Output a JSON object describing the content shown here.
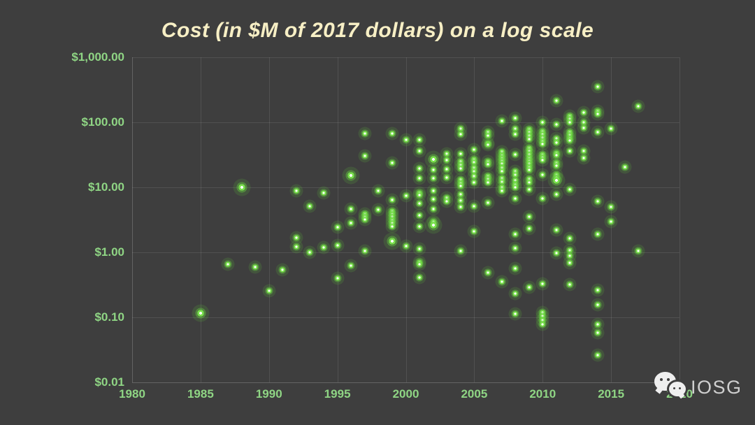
{
  "title": "Cost (in $M of 2017 dollars) on a log scale",
  "watermark": {
    "brand": "IOSG",
    "icon": "wechat-icon"
  },
  "colors": {
    "background": "#3E3E3E",
    "title_text": "#F7EFC5",
    "axis_label_text": "#8FD584",
    "dot_ring": "#79E04C",
    "dot_core": "#FFFFFF",
    "gridline": "#515151",
    "watermark_text": "#CFCFCF"
  },
  "chart_data": {
    "type": "scatter",
    "title": "Cost (in $M of 2017 dollars) on a log scale",
    "xlabel": "",
    "ylabel": "",
    "grid": true,
    "x_axis": {
      "range": [
        1980,
        2020
      ],
      "ticks": [
        1980,
        1985,
        1990,
        1995,
        2000,
        2005,
        2010,
        2015,
        2020
      ]
    },
    "y_axis": {
      "scale": "log",
      "range": [
        0.01,
        1000
      ],
      "tick_values": [
        1000,
        100,
        10,
        1,
        0.1,
        0.01
      ],
      "tick_labels": [
        "$1,000.00",
        "$100.00",
        "$10.00",
        "$1.00",
        "$0.10",
        "$0.01"
      ]
    },
    "points": [
      [
        1985,
        0.115,
        2
      ],
      [
        1987,
        0.65
      ],
      [
        1988,
        10,
        2
      ],
      [
        1989,
        0.59
      ],
      [
        1990,
        0.255
      ],
      [
        1991,
        0.54
      ],
      [
        1992,
        8.8
      ],
      [
        1992,
        1.7
      ],
      [
        1992,
        1.22
      ],
      [
        1993,
        5.1
      ],
      [
        1993,
        1.0
      ],
      [
        1994,
        8.2
      ],
      [
        1994,
        1.2
      ],
      [
        1995,
        2.45
      ],
      [
        1995,
        1.28
      ],
      [
        1995,
        0.4
      ],
      [
        1996,
        15.3,
        2
      ],
      [
        1996,
        4.6
      ],
      [
        1996,
        2.85
      ],
      [
        1996,
        0.62
      ],
      [
        1997,
        68
      ],
      [
        1997,
        30.5
      ],
      [
        1997,
        3.9
      ],
      [
        1997,
        3.5
      ],
      [
        1997,
        3.2
      ],
      [
        1997,
        1.05
      ],
      [
        1998,
        8.8
      ],
      [
        1998,
        4.5
      ],
      [
        1999,
        68
      ],
      [
        1999,
        23.5
      ],
      [
        1999,
        6.4
      ],
      [
        1999,
        4.3
      ],
      [
        1999,
        3.9
      ],
      [
        1999,
        3.5
      ],
      [
        1999,
        3.1
      ],
      [
        1999,
        2.8
      ],
      [
        1999,
        2.5
      ],
      [
        1999,
        1.5,
        2
      ],
      [
        2000,
        54
      ],
      [
        2000,
        7.4
      ],
      [
        2000,
        1.25
      ],
      [
        2001,
        54
      ],
      [
        2001,
        36
      ],
      [
        2001,
        19.7
      ],
      [
        2001,
        13.9
      ],
      [
        2001,
        8.3
      ],
      [
        2001,
        7.6
      ],
      [
        2001,
        5.6
      ],
      [
        2001,
        3.7
      ],
      [
        2001,
        2.5
      ],
      [
        2001,
        1.13
      ],
      [
        2001,
        0.71
      ],
      [
        2001,
        0.65
      ],
      [
        2001,
        0.41
      ],
      [
        2002,
        27,
        2
      ],
      [
        2002,
        18.8
      ],
      [
        2002,
        13.9
      ],
      [
        2002,
        8.8
      ],
      [
        2002,
        6.6
      ],
      [
        2002,
        4.6
      ],
      [
        2002,
        3.0
      ],
      [
        2002,
        2.65,
        2
      ],
      [
        2003,
        33
      ],
      [
        2003,
        26
      ],
      [
        2003,
        19
      ],
      [
        2003,
        14
      ],
      [
        2003,
        6.9
      ],
      [
        2003,
        6.1
      ],
      [
        2004,
        80
      ],
      [
        2004,
        65
      ],
      [
        2004,
        33
      ],
      [
        2004,
        25
      ],
      [
        2004,
        22
      ],
      [
        2004,
        19.5
      ],
      [
        2004,
        13
      ],
      [
        2004,
        11.5
      ],
      [
        2004,
        10.5
      ],
      [
        2004,
        7.9
      ],
      [
        2004,
        6.2
      ],
      [
        2004,
        5.0
      ],
      [
        2004,
        1.05
      ],
      [
        2005,
        38
      ],
      [
        2005,
        27
      ],
      [
        2005,
        24.5
      ],
      [
        2005,
        20
      ],
      [
        2005,
        17.5
      ],
      [
        2005,
        15
      ],
      [
        2005,
        12
      ],
      [
        2005,
        5.1
      ],
      [
        2005,
        2.1
      ],
      [
        2006,
        70
      ],
      [
        2006,
        62
      ],
      [
        2006,
        48
      ],
      [
        2006,
        45
      ],
      [
        2006,
        25
      ],
      [
        2006,
        22.5
      ],
      [
        2006,
        14.8
      ],
      [
        2006,
        13.3
      ],
      [
        2006,
        11.9
      ],
      [
        2006,
        5.8
      ],
      [
        2006,
        0.49
      ],
      [
        2007,
        106
      ],
      [
        2007,
        35
      ],
      [
        2007,
        31.5
      ],
      [
        2007,
        28
      ],
      [
        2007,
        25.5
      ],
      [
        2007,
        23
      ],
      [
        2007,
        20
      ],
      [
        2007,
        17.8
      ],
      [
        2007,
        13.8
      ],
      [
        2007,
        12.3
      ],
      [
        2007,
        9.9
      ],
      [
        2007,
        8.9
      ],
      [
        2007,
        0.355
      ],
      [
        2008,
        115
      ],
      [
        2008,
        80
      ],
      [
        2008,
        65
      ],
      [
        2008,
        32
      ],
      [
        2008,
        17.5
      ],
      [
        2008,
        15.6
      ],
      [
        2008,
        12.8
      ],
      [
        2008,
        11
      ],
      [
        2008,
        9.9
      ],
      [
        2008,
        6.7
      ],
      [
        2008,
        1.9
      ],
      [
        2008,
        1.16
      ],
      [
        2008,
        0.57
      ],
      [
        2008,
        0.23
      ],
      [
        2008,
        0.112
      ],
      [
        2009,
        79
      ],
      [
        2009,
        71
      ],
      [
        2009,
        63
      ],
      [
        2009,
        55
      ],
      [
        2009,
        40
      ],
      [
        2009,
        36
      ],
      [
        2009,
        32
      ],
      [
        2009,
        28.5
      ],
      [
        2009,
        25.5
      ],
      [
        2009,
        23
      ],
      [
        2009,
        20.5
      ],
      [
        2009,
        18.5
      ],
      [
        2009,
        13.5
      ],
      [
        2009,
        11.9
      ],
      [
        2009,
        9.3
      ],
      [
        2009,
        3.5
      ],
      [
        2009,
        2.3
      ],
      [
        2009,
        0.29
      ],
      [
        2010,
        100
      ],
      [
        2010,
        73
      ],
      [
        2010,
        65
      ],
      [
        2010,
        58
      ],
      [
        2010,
        51
      ],
      [
        2010,
        46
      ],
      [
        2010,
        32
      ],
      [
        2010,
        29
      ],
      [
        2010,
        26
      ],
      [
        2010,
        15.5
      ],
      [
        2010,
        6.7
      ],
      [
        2010,
        0.33
      ],
      [
        2010,
        0.118
      ],
      [
        2010,
        0.105
      ],
      [
        2010,
        0.09
      ],
      [
        2010,
        0.078
      ],
      [
        2011,
        215
      ],
      [
        2011,
        92
      ],
      [
        2011,
        56
      ],
      [
        2011,
        49
      ],
      [
        2011,
        34
      ],
      [
        2011,
        31
      ],
      [
        2011,
        24
      ],
      [
        2011,
        21.5
      ],
      [
        2011,
        15.5
      ],
      [
        2011,
        14
      ],
      [
        2011,
        12.8,
        2
      ],
      [
        2011,
        7.85
      ],
      [
        2011,
        2.2
      ],
      [
        2011,
        0.97
      ],
      [
        2012,
        126
      ],
      [
        2012,
        112
      ],
      [
        2012,
        100
      ],
      [
        2012,
        70
      ],
      [
        2012,
        64
      ],
      [
        2012,
        57
      ],
      [
        2012,
        52
      ],
      [
        2012,
        36.6
      ],
      [
        2012,
        9.3
      ],
      [
        2012,
        1.65
      ],
      [
        2012,
        1.08
      ],
      [
        2012,
        0.89
      ],
      [
        2012,
        0.69
      ],
      [
        2012,
        0.32
      ],
      [
        2013,
        140
      ],
      [
        2013,
        101
      ],
      [
        2013,
        82
      ],
      [
        2013,
        36.6
      ],
      [
        2013,
        28.6
      ],
      [
        2014,
        355
      ],
      [
        2014,
        148
      ],
      [
        2014,
        133
      ],
      [
        2014,
        70.5
      ],
      [
        2014,
        6.1
      ],
      [
        2014,
        1.9
      ],
      [
        2014,
        0.26
      ],
      [
        2014,
        0.155
      ],
      [
        2014,
        0.078
      ],
      [
        2014,
        0.058
      ],
      [
        2014,
        0.026
      ],
      [
        2015,
        81
      ],
      [
        2015,
        5.0
      ],
      [
        2015,
        3.0
      ],
      [
        2016,
        20.4
      ],
      [
        2017,
        175
      ],
      [
        2017,
        1.06
      ]
    ]
  }
}
